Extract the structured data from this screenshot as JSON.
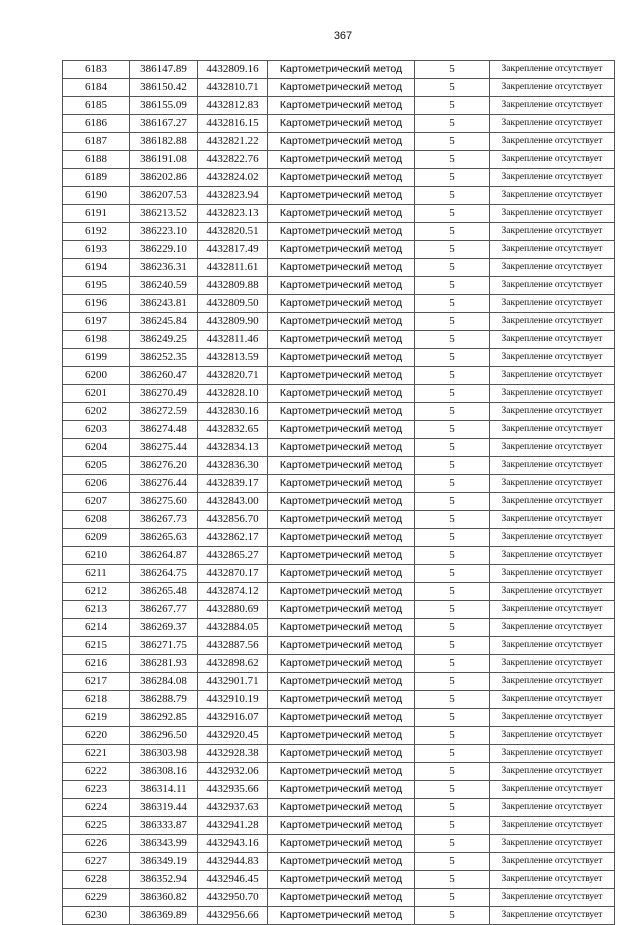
{
  "page_number": "367",
  "method": "Картометрический метод",
  "accuracy": "5",
  "fixing": "Закрепление отсутствует",
  "rows": [
    [
      "6183",
      "386147.89",
      "4432809.16"
    ],
    [
      "6184",
      "386150.42",
      "4432810.71"
    ],
    [
      "6185",
      "386155.09",
      "4432812.83"
    ],
    [
      "6186",
      "386167.27",
      "4432816.15"
    ],
    [
      "6187",
      "386182.88",
      "4432821.22"
    ],
    [
      "6188",
      "386191.08",
      "4432822.76"
    ],
    [
      "6189",
      "386202.86",
      "4432824.02"
    ],
    [
      "6190",
      "386207.53",
      "4432823.94"
    ],
    [
      "6191",
      "386213.52",
      "4432823.13"
    ],
    [
      "6192",
      "386223.10",
      "4432820.51"
    ],
    [
      "6193",
      "386229.10",
      "4432817.49"
    ],
    [
      "6194",
      "386236.31",
      "4432811.61"
    ],
    [
      "6195",
      "386240.59",
      "4432809.88"
    ],
    [
      "6196",
      "386243.81",
      "4432809.50"
    ],
    [
      "6197",
      "386245.84",
      "4432809.90"
    ],
    [
      "6198",
      "386249.25",
      "4432811.46"
    ],
    [
      "6199",
      "386252.35",
      "4432813.59"
    ],
    [
      "6200",
      "386260.47",
      "4432820.71"
    ],
    [
      "6201",
      "386270.49",
      "4432828.10"
    ],
    [
      "6202",
      "386272.59",
      "4432830.16"
    ],
    [
      "6203",
      "386274.48",
      "4432832.65"
    ],
    [
      "6204",
      "386275.44",
      "4432834.13"
    ],
    [
      "6205",
      "386276.20",
      "4432836.30"
    ],
    [
      "6206",
      "386276.44",
      "4432839.17"
    ],
    [
      "6207",
      "386275.60",
      "4432843.00"
    ],
    [
      "6208",
      "386267.73",
      "4432856.70"
    ],
    [
      "6209",
      "386265.63",
      "4432862.17"
    ],
    [
      "6210",
      "386264.87",
      "4432865.27"
    ],
    [
      "6211",
      "386264.75",
      "4432870.17"
    ],
    [
      "6212",
      "386265.48",
      "4432874.12"
    ],
    [
      "6213",
      "386267.77",
      "4432880.69"
    ],
    [
      "6214",
      "386269.37",
      "4432884.05"
    ],
    [
      "6215",
      "386271.75",
      "4432887.56"
    ],
    [
      "6216",
      "386281.93",
      "4432898.62"
    ],
    [
      "6217",
      "386284.08",
      "4432901.71"
    ],
    [
      "6218",
      "386288.79",
      "4432910.19"
    ],
    [
      "6219",
      "386292.85",
      "4432916.07"
    ],
    [
      "6220",
      "386296.50",
      "4432920.45"
    ],
    [
      "6221",
      "386303.98",
      "4432928.38"
    ],
    [
      "6222",
      "386308.16",
      "4432932.06"
    ],
    [
      "6223",
      "386314.11",
      "4432935.66"
    ],
    [
      "6224",
      "386319.44",
      "4432937.63"
    ],
    [
      "6225",
      "386333.87",
      "4432941.28"
    ],
    [
      "6226",
      "386343.99",
      "4432943.16"
    ],
    [
      "6227",
      "386349.19",
      "4432944.83"
    ],
    [
      "6228",
      "386352.94",
      "4432946.45"
    ],
    [
      "6229",
      "386360.82",
      "4432950.70"
    ],
    [
      "6230",
      "386369.89",
      "4432956.66"
    ]
  ]
}
